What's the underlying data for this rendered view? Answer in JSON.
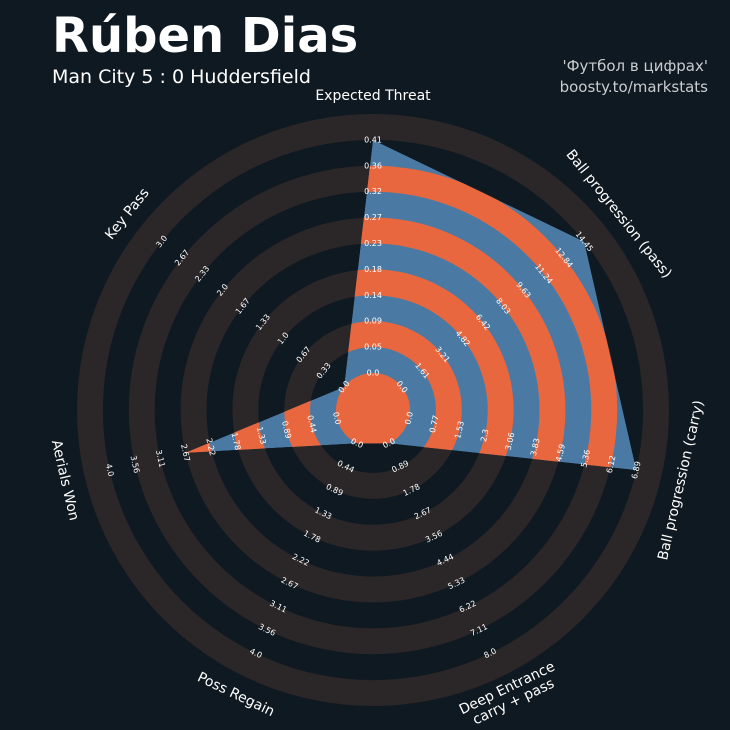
{
  "header": {
    "title": "Rúben Dias",
    "subtitle": "Man City 5 : 0 Huddersfield",
    "credit_line1": "'Футбол в цифрах'",
    "credit_line2": "boosty.to/markstats"
  },
  "colors": {
    "background": "#0f1921",
    "ring_dark": "#2b2628",
    "ring_orange": "#e8673f",
    "fill_blue": "#4a7aa3",
    "text": "#ffffff"
  },
  "chart_data": {
    "type": "radar",
    "parameters": [
      {
        "name": "Expected Threat",
        "value": 0.41,
        "ticks": [
          "0.0",
          "0.05",
          "0.09",
          "0.14",
          "0.18",
          "0.23",
          "0.27",
          "0.32",
          "0.36",
          "0.41"
        ]
      },
      {
        "name": "Ball progression (pass)",
        "value": 14.45,
        "ticks": [
          "0.0",
          "1.61",
          "3.21",
          "4.82",
          "6.42",
          "8.03",
          "9.63",
          "11.24",
          "12.84",
          "14.45"
        ]
      },
      {
        "name": "Ball progression (carry)",
        "value": 6.89,
        "ticks": [
          "0.0",
          "0.77",
          "1.53",
          "2.3",
          "3.06",
          "3.83",
          "4.59",
          "5.36",
          "6.12",
          "6.89"
        ]
      },
      {
        "name": "Deep Entrance\ncarry + pass",
        "value": 0.0,
        "ticks": [
          "0.0",
          "0.89",
          "1.78",
          "2.67",
          "3.56",
          "4.44",
          "5.33",
          "6.22",
          "7.11",
          "8.0"
        ]
      },
      {
        "name": "Poss Regain",
        "value": 0.0,
        "ticks": [
          "0.0",
          "0.44",
          "0.89",
          "1.33",
          "1.78",
          "2.22",
          "2.67",
          "3.11",
          "3.56",
          "4.0"
        ]
      },
      {
        "name": "Aerials Won",
        "value": 2.67,
        "ticks": [
          "0.0",
          "0.44",
          "0.89",
          "1.33",
          "1.78",
          "2.22",
          "2.67",
          "3.11",
          "3.56",
          "4.0"
        ]
      },
      {
        "name": "Key Pass",
        "value": 0.0,
        "ticks": [
          "0.0",
          "0.33",
          "0.67",
          "1.0",
          "1.33",
          "1.67",
          "2.0",
          "2.33",
          "2.67",
          "3.0"
        ]
      }
    ],
    "ranges": [
      [
        0,
        0.41
      ],
      [
        0,
        14.45
      ],
      [
        0,
        6.89
      ],
      [
        0,
        8.0
      ],
      [
        0,
        4.0
      ],
      [
        0,
        4.0
      ],
      [
        0,
        3.0
      ]
    ]
  }
}
